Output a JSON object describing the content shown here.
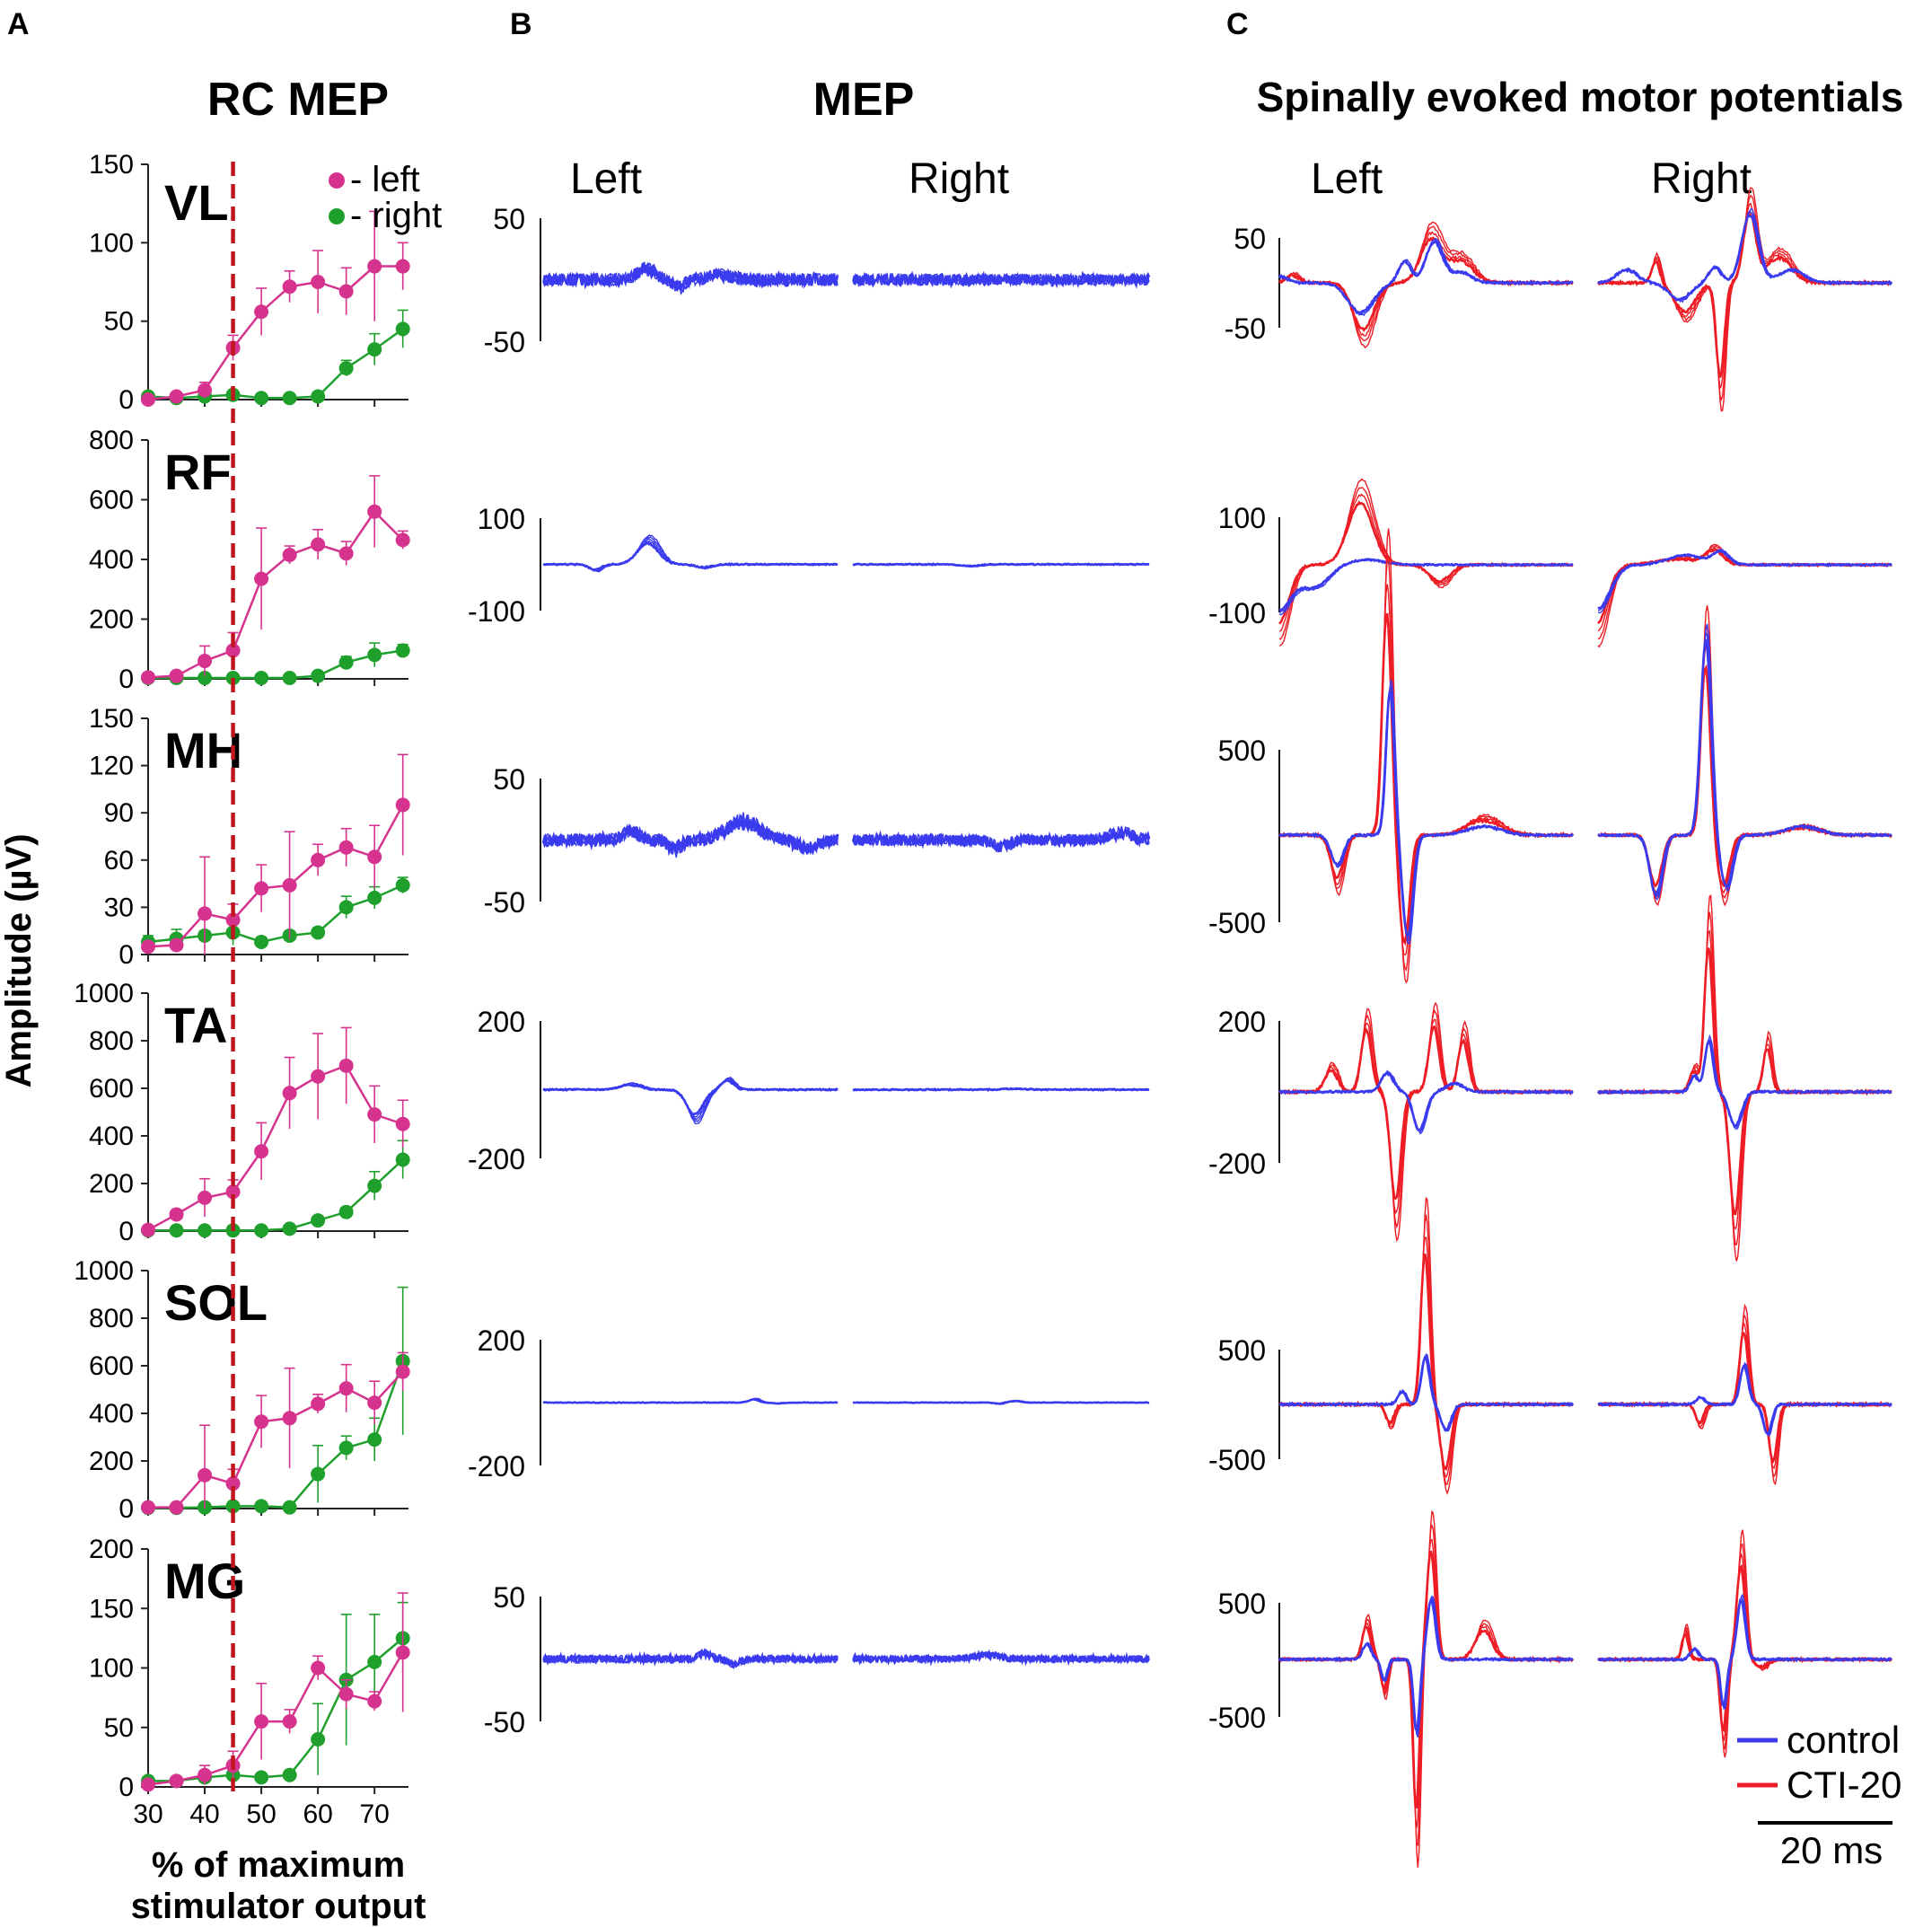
{
  "panels": {
    "a": {
      "letter": "A",
      "title": "RC MEP"
    },
    "b": {
      "letter": "B",
      "title": "MEP",
      "left_label": "Left",
      "right_label": "Right"
    },
    "c": {
      "letter": "C",
      "title": "Spinally evoked motor potentials",
      "left_label": "Left",
      "right_label": "Right"
    }
  },
  "chart_data": [
    {
      "type": "line",
      "title": "RC MEP",
      "xlabel": "% of maximum stimulator output",
      "ylabel": "Amplitude (µV)",
      "x": [
        30,
        35,
        40,
        45,
        50,
        55,
        60,
        65,
        70,
        75
      ],
      "x_ticks": [
        "30",
        "40",
        "50",
        "60",
        "70"
      ],
      "threshold_line_x": 45,
      "legend": [
        {
          "name": "left",
          "label": "- left",
          "color": "#d6338f"
        },
        {
          "name": "right",
          "label": "- right",
          "color": "#1fa02d"
        }
      ],
      "muscles": [
        {
          "name": "VL",
          "ylim": [
            0,
            150
          ],
          "ticks": [
            "0",
            "50",
            "100",
            "150"
          ],
          "tick_values": [
            0,
            50,
            100,
            150
          ],
          "left": [
            0,
            2,
            6,
            33,
            56,
            72,
            75,
            69,
            85,
            85
          ],
          "left_err": [
            2,
            2,
            5,
            8,
            15,
            10,
            20,
            15,
            35,
            15
          ],
          "right": [
            2,
            1,
            2,
            3,
            1,
            1,
            2,
            20,
            32,
            45
          ],
          "right_err": [
            1,
            1,
            1,
            1,
            1,
            1,
            1,
            5,
            10,
            12
          ]
        },
        {
          "name": "RF",
          "ylim": [
            0,
            800
          ],
          "ticks": [
            "0",
            "200",
            "400",
            "600",
            "800"
          ],
          "tick_values": [
            0,
            200,
            400,
            600,
            800
          ],
          "left": [
            5,
            10,
            60,
            95,
            335,
            415,
            450,
            420,
            560,
            465
          ],
          "left_err": [
            5,
            5,
            50,
            60,
            170,
            30,
            50,
            40,
            120,
            30
          ],
          "right": [
            3,
            3,
            3,
            3,
            3,
            3,
            10,
            55,
            80,
            95
          ],
          "right_err": [
            2,
            2,
            2,
            2,
            2,
            2,
            10,
            20,
            40,
            20
          ]
        },
        {
          "name": "MH",
          "ylim": [
            0,
            150
          ],
          "ticks": [
            "0",
            "30",
            "60",
            "90",
            "120",
            "150"
          ],
          "tick_values": [
            0,
            30,
            60,
            90,
            120,
            150
          ],
          "left": [
            5,
            6,
            26,
            22,
            42,
            44,
            60,
            68,
            62,
            95
          ],
          "left_err": [
            2,
            3,
            36,
            10,
            15,
            34,
            10,
            12,
            20,
            32
          ],
          "right": [
            8,
            10,
            12,
            14,
            8,
            12,
            14,
            30,
            36,
            44
          ],
          "right_err": [
            4,
            6,
            3,
            8,
            3,
            3,
            3,
            7,
            7,
            5
          ]
        },
        {
          "name": "TA",
          "ylim": [
            0,
            1000
          ],
          "ticks": [
            "0",
            "200",
            "400",
            "600",
            "800",
            "1000"
          ],
          "tick_values": [
            0,
            200,
            400,
            600,
            800,
            1000
          ],
          "left": [
            5,
            70,
            140,
            165,
            335,
            580,
            650,
            695,
            490,
            450
          ],
          "left_err": [
            5,
            20,
            80,
            50,
            120,
            150,
            180,
            160,
            120,
            100
          ],
          "right": [
            3,
            3,
            3,
            3,
            3,
            10,
            45,
            80,
            190,
            300
          ],
          "right_err": [
            2,
            2,
            2,
            2,
            2,
            5,
            15,
            20,
            60,
            80
          ]
        },
        {
          "name": "SOL",
          "ylim": [
            0,
            1000
          ],
          "ticks": [
            "0",
            "200",
            "400",
            "600",
            "800",
            "1000"
          ],
          "tick_values": [
            0,
            200,
            400,
            600,
            800,
            1000
          ],
          "left": [
            5,
            5,
            140,
            105,
            365,
            380,
            440,
            505,
            445,
            575
          ],
          "left_err": [
            3,
            3,
            210,
            60,
            110,
            210,
            40,
            100,
            90,
            80
          ],
          "right": [
            3,
            3,
            5,
            10,
            10,
            5,
            145,
            255,
            290,
            620
          ],
          "right_err": [
            2,
            2,
            2,
            5,
            5,
            3,
            120,
            50,
            90,
            310
          ]
        },
        {
          "name": "MG",
          "ylim": [
            0,
            200
          ],
          "ticks": [
            "0",
            "50",
            "100",
            "150",
            "200"
          ],
          "tick_values": [
            0,
            50,
            100,
            150,
            200
          ],
          "left": [
            2,
            5,
            10,
            18,
            55,
            55,
            100,
            78,
            72,
            113
          ],
          "left_err": [
            2,
            2,
            8,
            12,
            32,
            10,
            10,
            12,
            8,
            50
          ],
          "right": [
            5,
            5,
            8,
            10,
            8,
            10,
            40,
            90,
            105,
            125
          ],
          "right_err": [
            3,
            2,
            3,
            4,
            3,
            4,
            30,
            55,
            40,
            30
          ]
        }
      ]
    },
    {
      "type": "line",
      "title": "MEP",
      "series_color": "#3a3aee",
      "rows": [
        {
          "muscle": "VL",
          "y_ticks": [
            "50",
            "-50"
          ],
          "tick_values": [
            50,
            -50
          ]
        },
        {
          "muscle": "RF",
          "y_ticks": [
            "100",
            "-100"
          ],
          "tick_values": [
            100,
            -100
          ]
        },
        {
          "muscle": "MH",
          "y_ticks": [
            "50",
            "-50"
          ],
          "tick_values": [
            50,
            -50
          ]
        },
        {
          "muscle": "TA",
          "y_ticks": [
            "200",
            "-200"
          ],
          "tick_values": [
            200,
            -200
          ]
        },
        {
          "muscle": "SOL",
          "y_ticks": [
            "200",
            "-200"
          ],
          "tick_values": [
            200,
            -200
          ]
        },
        {
          "muscle": "MG",
          "y_ticks": [
            "50",
            "-50"
          ],
          "tick_values": [
            50,
            -50
          ]
        }
      ]
    },
    {
      "type": "line",
      "title": "Spinally evoked motor potentials",
      "legend": [
        {
          "name": "control",
          "label": "control",
          "color": "#3a3aee"
        },
        {
          "name": "cti20",
          "label": "CTI-20",
          "color": "#ee1c24"
        }
      ],
      "scale_bar": {
        "label": "20 ms",
        "value_ms": 20
      },
      "rows": [
        {
          "muscle": "VL",
          "y_ticks": [
            "50",
            "-50"
          ],
          "tick_values": [
            50,
            -50
          ]
        },
        {
          "muscle": "RF",
          "y_ticks": [
            "100",
            "-100"
          ],
          "tick_values": [
            100,
            -100
          ]
        },
        {
          "muscle": "MH",
          "y_ticks": [
            "500",
            "-500"
          ],
          "tick_values": [
            500,
            -500
          ]
        },
        {
          "muscle": "TA",
          "y_ticks": [
            "200",
            "-200"
          ],
          "tick_values": [
            200,
            -200
          ]
        },
        {
          "muscle": "SOL",
          "y_ticks": [
            "500",
            "-500"
          ],
          "tick_values": [
            500,
            -500
          ]
        },
        {
          "muscle": "MG",
          "y_ticks": [
            "500",
            "-500"
          ],
          "tick_values": [
            500,
            -500
          ]
        }
      ]
    }
  ]
}
